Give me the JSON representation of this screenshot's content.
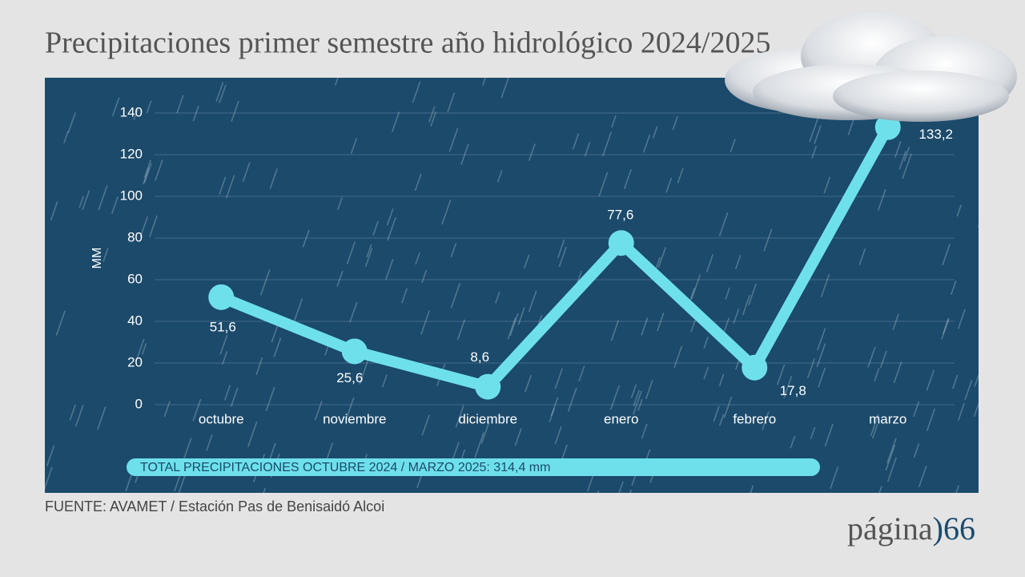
{
  "chart_data": {
    "type": "line",
    "title": "Precipitaciones primer semestre año hidrológico 2024/2025",
    "y_axis_label": "MM",
    "categories": [
      "octubre",
      "noviembre",
      "diciembre",
      "enero",
      "febrero",
      "marzo"
    ],
    "values": [
      51.6,
      25.6,
      8.6,
      77.6,
      17.8,
      133.2
    ],
    "value_labels": [
      "51,6",
      "25,6",
      "8,6",
      "77,6",
      "17,8",
      "133,2"
    ],
    "color": "#6ee0ec",
    "ylim": [
      0,
      140
    ],
    "yticks": [
      0,
      20,
      40,
      60,
      80,
      100,
      120,
      140
    ],
    "grid": true,
    "annotation": "TOTAL PRECIPITACIONES OCTUBRE 2024 / MARZO 2025: 314,4 mm"
  },
  "source": "FUENTE: AVAMET / Estación Pas de Benisaidó Alcoi",
  "logo": {
    "name": "página",
    "suffix": ")66"
  }
}
